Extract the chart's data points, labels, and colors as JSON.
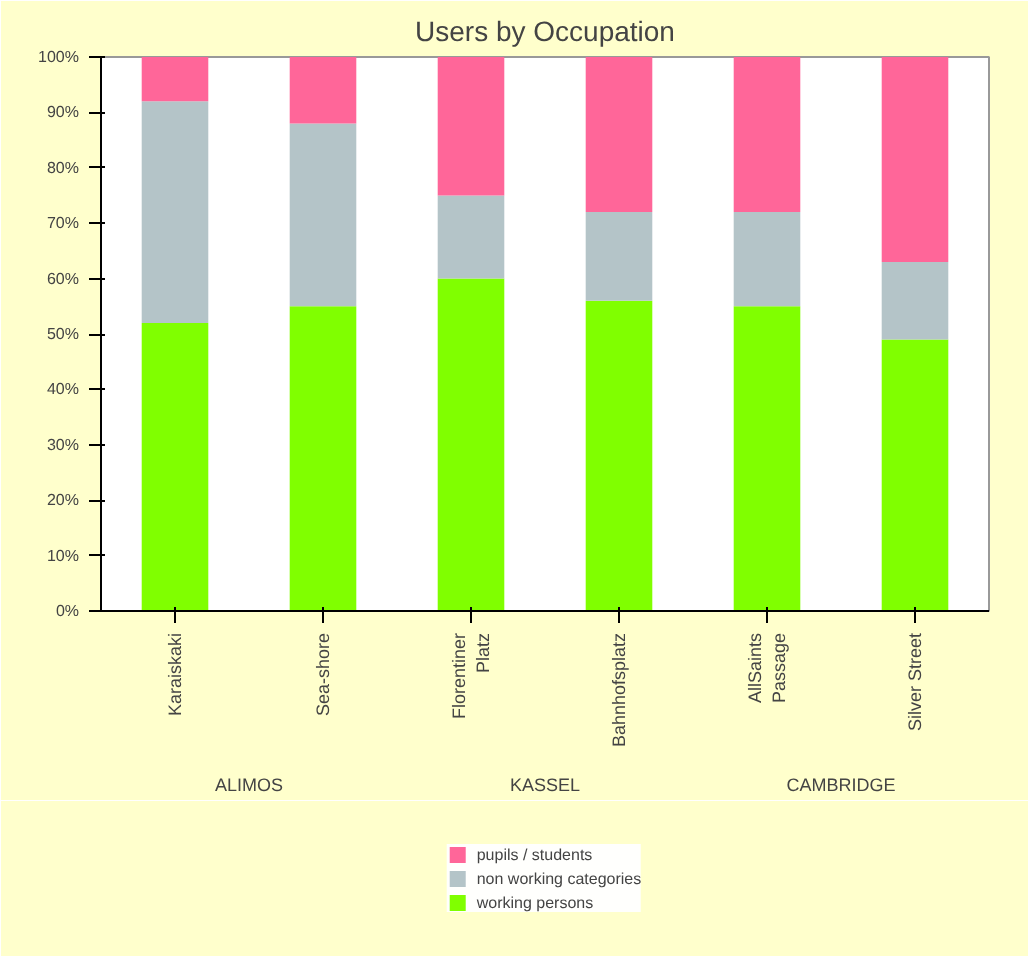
{
  "chart_data": {
    "type": "bar",
    "title": "Users by Occupation",
    "stacked": true,
    "legend": "bottom",
    "categories": [
      "Karaiskaki",
      "Sea-shore",
      "Florentiner\nPlatz",
      "Bahnhofsplatz",
      "AllSaints\nPassage",
      "Silver Street"
    ],
    "annotations": [
      "ALIMOS",
      "KASSEL",
      "CAMBRIDGE"
    ],
    "ylim": [
      0,
      100
    ],
    "yticks": [
      {
        "value": 0,
        "label": "0%"
      },
      {
        "value": 10,
        "label": "10%"
      },
      {
        "value": 20,
        "label": "20%"
      },
      {
        "value": 30,
        "label": "30%"
      },
      {
        "value": 40,
        "label": "40%"
      },
      {
        "value": 50,
        "label": "50%"
      },
      {
        "value": 60,
        "label": "60%"
      },
      {
        "value": 70,
        "label": "70%"
      },
      {
        "value": 80,
        "label": "80%"
      },
      {
        "value": 90,
        "label": "90%"
      },
      {
        "value": 100,
        "label": "100%"
      }
    ],
    "series": [
      {
        "name": "working persons",
        "color": "#80ff00",
        "values": [
          52,
          55,
          60,
          56,
          55,
          49
        ]
      },
      {
        "name": "non working categories",
        "color": "#b4c4c8",
        "values": [
          40,
          33,
          15,
          16,
          17,
          14
        ]
      },
      {
        "name": "pupils / students",
        "color": "#ff6699",
        "values": [
          8,
          12,
          25,
          28,
          28,
          37
        ]
      }
    ]
  }
}
